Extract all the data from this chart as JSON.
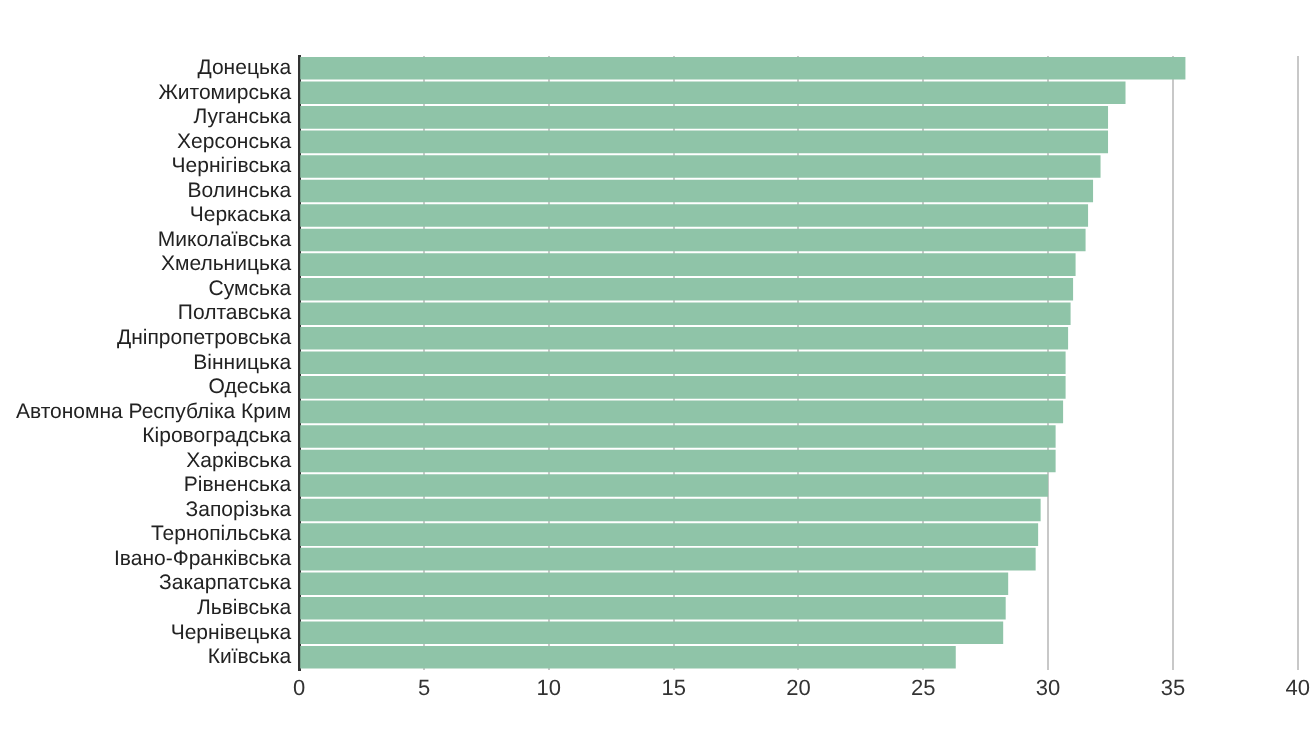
{
  "chart_data": {
    "type": "bar",
    "orientation": "horizontal",
    "categories": [
      "Донецька",
      "Житомирська",
      "Луганська",
      "Херсонська",
      "Чернігівська",
      "Волинська",
      "Черкаська",
      "Миколаївська",
      "Хмельницька",
      "Сумська",
      "Полтавська",
      "Дніпропетровська",
      "Вінницька",
      "Одеська",
      "Автономна Республіка Крим",
      "Кіровоградська",
      "Харківська",
      "Рівненська",
      "Запорізька",
      "Тернопільська",
      "Івано-Франківська",
      "Закарпатська",
      "Львівська",
      "Чернівецька",
      "Київська"
    ],
    "values": [
      35.5,
      33.1,
      32.4,
      32.4,
      32.1,
      31.8,
      31.6,
      31.5,
      31.1,
      31.0,
      30.9,
      30.8,
      30.7,
      30.7,
      30.6,
      30.3,
      30.3,
      30.0,
      29.7,
      29.6,
      29.5,
      28.4,
      28.3,
      28.2,
      26.3
    ],
    "color": "#8fc4a8",
    "xlim": [
      0,
      40
    ],
    "xticks": [
      0,
      5,
      10,
      15,
      20,
      25,
      30,
      35,
      40
    ],
    "grid": "x"
  }
}
